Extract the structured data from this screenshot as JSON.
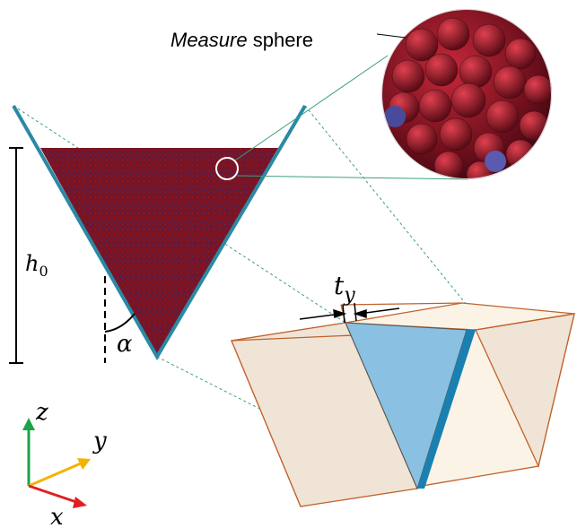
{
  "labels": {
    "measure": "Measure",
    "sphere": "sphere",
    "h": "h",
    "h_sub": "0",
    "alpha": "α",
    "t": "t",
    "t_sub": "y",
    "axis_z": "z",
    "axis_y": "y",
    "axis_x": "x"
  }
}
